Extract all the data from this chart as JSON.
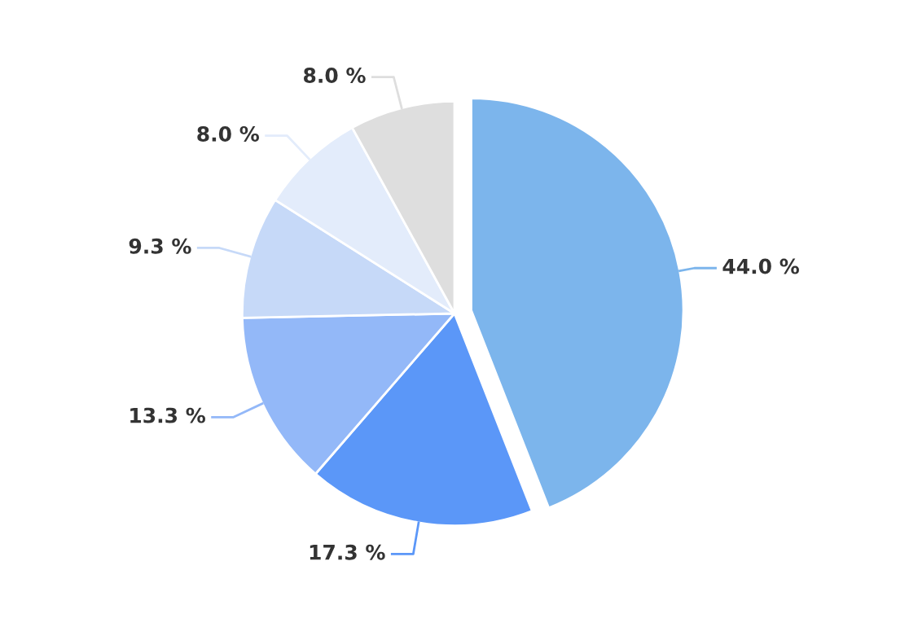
{
  "chart_data": {
    "type": "pie",
    "categories": [
      null,
      null,
      null,
      null,
      null,
      null
    ],
    "values": [
      44.0,
      17.3,
      13.3,
      9.3,
      8.0,
      8.0
    ],
    "colors": [
      "#7cb5ec",
      "#5b97f8",
      "#93b8f8",
      "#c6d9f8",
      "#e3ecfb",
      "#dedede"
    ],
    "value_labels": [
      "44.0 %",
      "17.3 %",
      "13.3 %",
      "9.3 %",
      "8.0 %",
      "8.0 %"
    ]
  }
}
